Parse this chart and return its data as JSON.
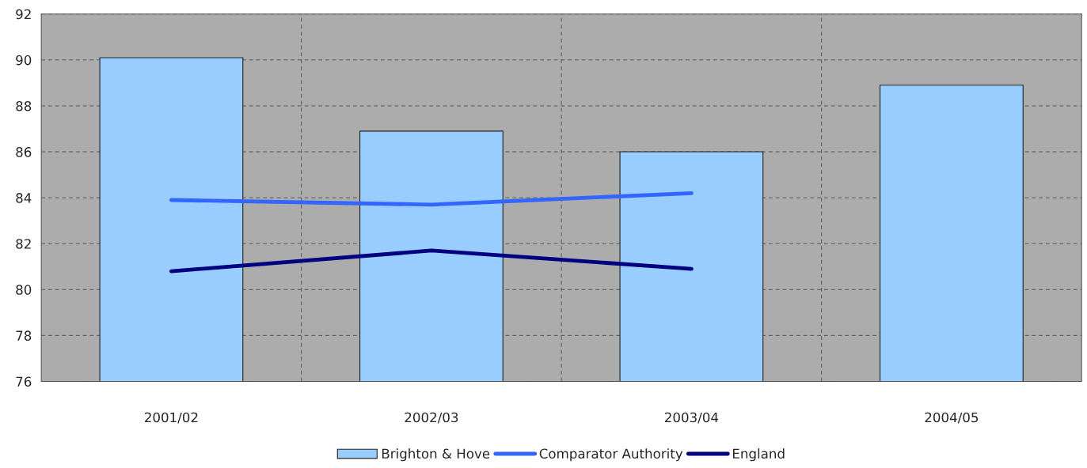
{
  "chart_data": {
    "type": "bar",
    "categories": [
      "2001/02",
      "2002/03",
      "2003/04",
      "2004/05"
    ],
    "series": [
      {
        "name": "Brighton & Hove",
        "color": "#99ccff",
        "values": [
          90.1,
          86.9,
          86.0,
          88.9
        ]
      },
      {
        "name": "Comparator Authority",
        "type": "line",
        "color": "#3366ff",
        "values": [
          83.9,
          83.7,
          84.2,
          null
        ]
      },
      {
        "name": "England",
        "type": "line",
        "color": "#000080",
        "values": [
          80.8,
          81.7,
          80.9,
          null
        ]
      }
    ],
    "ylim": [
      76,
      92
    ],
    "yticks": [
      76,
      78,
      80,
      82,
      84,
      86,
      88,
      90,
      92
    ],
    "grid": true,
    "legend": "bottom",
    "marker": "none",
    "line_style": "solid"
  }
}
